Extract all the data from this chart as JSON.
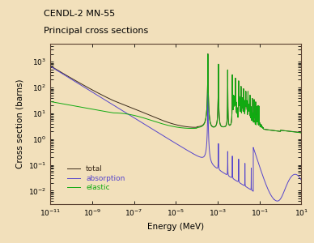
{
  "title_line1": "CENDL-2 MN-55",
  "title_line2": "Principal cross sections",
  "xlabel": "Energy (MeV)",
  "ylabel": "Cross section (barns)",
  "background_color": "#f2e0bb",
  "plot_bg_color": "#f2e0bb",
  "xlim": [
    1e-11,
    10
  ],
  "ylim": [
    0.003,
    5000
  ],
  "legend_entries": [
    "total",
    "absorption",
    "elastic"
  ],
  "line_colors": [
    "#3a2a1a",
    "#5544cc",
    "#11aa11"
  ]
}
